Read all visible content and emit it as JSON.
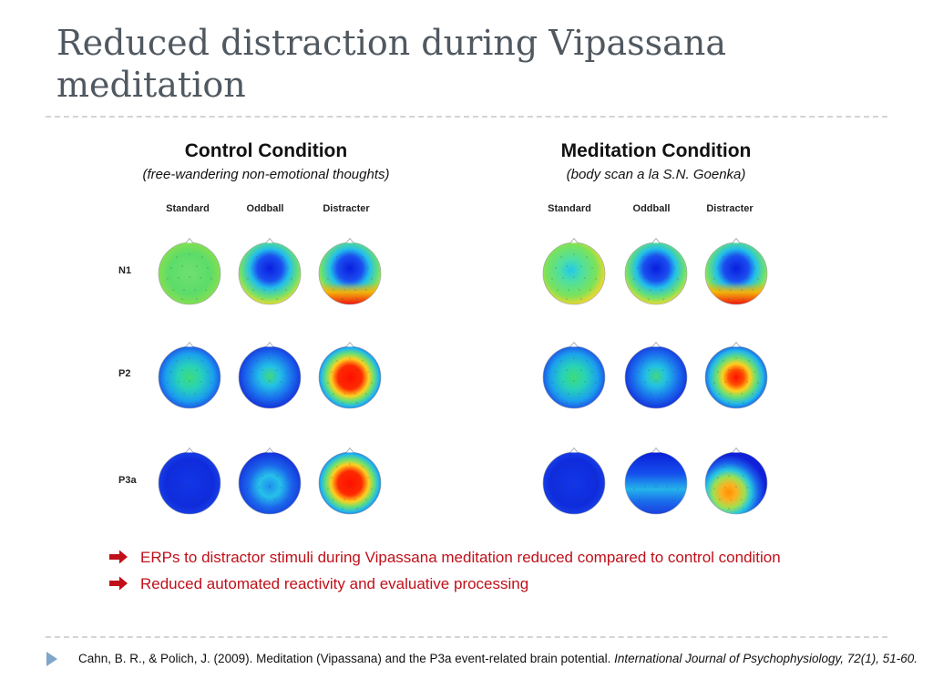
{
  "title": "Reduced distraction during Vipassana meditation",
  "panels": [
    {
      "title": "Control Condition",
      "subtitle": "(free-wandering non-emotional thoughts)",
      "columns": [
        "Standard",
        "Oddball",
        "Distracter"
      ],
      "rows": [
        "N1",
        "P2",
        "P3a"
      ],
      "maps": [
        [
          "green",
          "blue-center",
          "blue-center-red-bottom"
        ],
        [
          "cyan-green",
          "blue-green",
          "red-center"
        ],
        [
          "blue",
          "blue-cyan",
          "red-center"
        ]
      ]
    },
    {
      "title": "Meditation Condition",
      "subtitle": "(body scan a la S.N. Goenka)",
      "columns": [
        "Standard",
        "Oddball",
        "Distracter"
      ],
      "rows": [
        "",
        "",
        ""
      ],
      "maps": [
        [
          "green-cyan-center",
          "blue-center",
          "blue-center-red-bottom"
        ],
        [
          "cyan-green",
          "blue-green",
          "red-center"
        ],
        [
          "blue",
          "blue-top-cyan",
          "red-orange-center"
        ]
      ]
    }
  ],
  "bullets": [
    "ERPs to distractor stimuli during Vipassana meditation reduced compared to control condition",
    "Reduced automated reactivity and evaluative processing"
  ],
  "reference": {
    "authors": "Cahn, B. R., & Polich, J. (2009). Meditation (Vipassana) and the P3a event-related brain potential.",
    "journal": "International Journal of Psychophysiology, 72(1), 51-60."
  },
  "colors": {
    "title": "#505860",
    "bullet_text": "#c0101a",
    "arrow": "#c0101a",
    "footer_marker": "#7fa6c8"
  },
  "icons": {
    "bullet": "right-arrow-icon",
    "footer": "triangle-bullet-icon"
  }
}
